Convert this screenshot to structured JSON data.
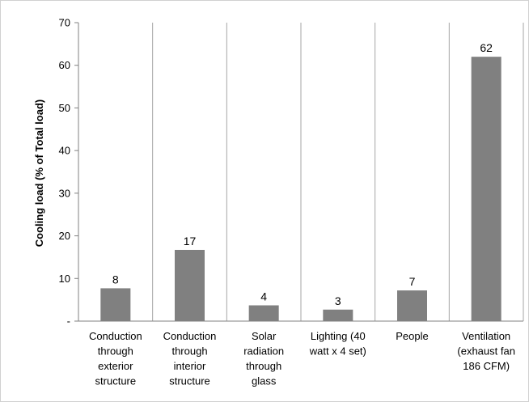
{
  "chart_data": {
    "type": "bar",
    "title": "",
    "xlabel": "",
    "ylabel": "Cooling load  (% of Total load)",
    "ylim": [
      0,
      70
    ],
    "yticks": [
      "-",
      "10",
      "20",
      "30",
      "40",
      "50",
      "60",
      "70"
    ],
    "categories": [
      "Conduction through exterior structure",
      "Conduction through interior structure",
      "Solar radiation through glass",
      "Lighting (40 watt x 4 set)",
      "People",
      "Ventilation (exhaust fan 186 CFM)"
    ],
    "category_lines": [
      [
        "Conduction",
        "through",
        "exterior",
        "structure"
      ],
      [
        "Conduction",
        "through",
        "interior",
        "structure"
      ],
      [
        "Solar",
        "radiation",
        "through",
        "glass"
      ],
      [
        "Lighting (40",
        "watt x 4 set)"
      ],
      [
        "People"
      ],
      [
        "Ventilation",
        "(exhaust fan",
        "186 CFM)"
      ]
    ],
    "values": [
      7.7,
      16.7,
      3.7,
      2.7,
      7.2,
      62
    ],
    "data_labels": [
      "8",
      "17",
      "4",
      "3",
      "7",
      "62"
    ],
    "bar_color": "#808080",
    "grid": "vertical category separators",
    "legend": "none"
  }
}
